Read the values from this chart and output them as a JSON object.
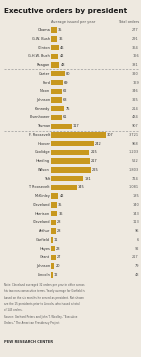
{
  "title": "Executive orders by president",
  "col_header_avg": "Average issued per year",
  "col_header_total": "Total orders",
  "presidents": [
    {
      "name": "Obama",
      "avg": 35,
      "total": "277"
    },
    {
      "name": "G.W. Bush",
      "avg": 36,
      "total": "291"
    },
    {
      "name": "Clinton",
      "avg": 46,
      "total": "364"
    },
    {
      "name": "G.H.W. Bush",
      "avg": 42,
      "total": "166"
    },
    {
      "name": "Reagan",
      "avg": 48,
      "total": "381"
    },
    {
      "name": "Carter",
      "avg": 80,
      "total": "320"
    },
    {
      "name": "Ford",
      "avg": 69,
      "total": "169"
    },
    {
      "name": "Nixon",
      "avg": 62,
      "total": "346"
    },
    {
      "name": "Johnson",
      "avg": 63,
      "total": "325"
    },
    {
      "name": "Kennedy",
      "avg": 75,
      "total": "214"
    },
    {
      "name": "Eisenhower",
      "avg": 61,
      "total": "484"
    },
    {
      "name": "Truman",
      "avg": 117,
      "total": "907"
    },
    {
      "name": "F. Roosevelt",
      "avg": 307,
      "total": "3,721"
    },
    {
      "name": "Hoover",
      "avg": 242,
      "total": "968"
    },
    {
      "name": "Coolidge",
      "avg": 215,
      "total": "1,203"
    },
    {
      "name": "Harding",
      "avg": 217,
      "total": "522"
    },
    {
      "name": "Wilson",
      "avg": 225,
      "total": "1,803"
    },
    {
      "name": "Taft",
      "avg": 181,
      "total": "724"
    },
    {
      "name": "T. Roosevelt",
      "avg": 145,
      "total": "1,081"
    },
    {
      "name": "McKinley",
      "avg": 42,
      "total": "185"
    },
    {
      "name": "Cleveland",
      "avg": 35,
      "total": "140"
    },
    {
      "name": "Harrison",
      "avg": 36,
      "total": "143"
    },
    {
      "name": "Cleveland",
      "avg": 28,
      "total": "113"
    },
    {
      "name": "Arthur",
      "avg": 28,
      "total": "96"
    },
    {
      "name": "Garfield",
      "avg": 11,
      "total": "6"
    },
    {
      "name": "Hayes",
      "avg": 23,
      "total": "92"
    },
    {
      "name": "Grant",
      "avg": 27,
      "total": "217"
    },
    {
      "name": "Johnson",
      "avg": 20,
      "total": "79"
    },
    {
      "name": "Lincoln",
      "avg": 12,
      "total": "48"
    }
  ],
  "bar_color": "#C8981E",
  "bg_color": "#EEE9E0",
  "divider_after_indices": [
    4,
    11
  ],
  "note_text": "Note: Cleveland averaged 32 orders per year in office across his two non-consecutive terms. Yearly average for Garfield is based on the six months he served as president. Not shown are the 15 presidents prior to Lincoln, who issued a total of 143 orders.",
  "source_text": "Source: Gerhard Peters and John T. Woolley, \"Executive Orders,\" The American Presidency Project.",
  "footer_text": "PEW RESEARCH CENTER",
  "title_fontsize": 5.2,
  "header_fontsize": 2.6,
  "label_fontsize": 2.5,
  "note_fontsize": 1.9,
  "footer_fontsize": 2.6
}
